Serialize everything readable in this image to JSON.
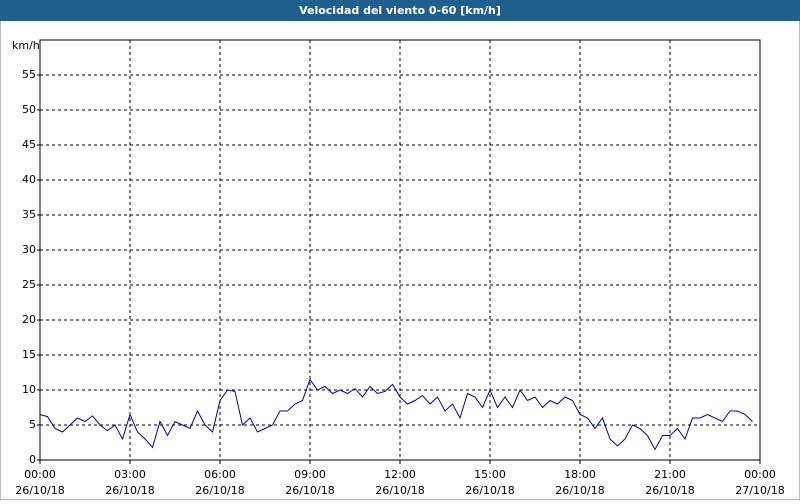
{
  "chart_data": {
    "type": "line",
    "title": "Velocidad del viento 0-60 [km/h]",
    "y_label": "km/h",
    "xlim": [
      0,
      24
    ],
    "xticks": [
      {
        "value": 0,
        "label": "00:00",
        "date": "26/10/18"
      },
      {
        "value": 3,
        "label": "03:00",
        "date": "26/10/18"
      },
      {
        "value": 6,
        "label": "06:00",
        "date": "26/10/18"
      },
      {
        "value": 9,
        "label": "09:00",
        "date": "26/10/18"
      },
      {
        "value": 12,
        "label": "12:00",
        "date": "26/10/18"
      },
      {
        "value": 15,
        "label": "15:00",
        "date": "26/10/18"
      },
      {
        "value": 18,
        "label": "18:00",
        "date": "26/10/18"
      },
      {
        "value": 21,
        "label": "21:00",
        "date": "26/10/18"
      },
      {
        "value": 24,
        "label": "00:00",
        "date": "27/10/18"
      }
    ],
    "ylim": [
      0,
      60
    ],
    "yticks": [
      0,
      5,
      10,
      15,
      20,
      25,
      30,
      35,
      40,
      45,
      50,
      55
    ],
    "grid": true,
    "x": [
      0,
      0.25,
      0.5,
      0.75,
      1,
      1.25,
      1.5,
      1.75,
      2,
      2.25,
      2.5,
      2.75,
      3,
      3.25,
      3.5,
      3.75,
      4,
      4.25,
      4.5,
      4.75,
      5,
      5.25,
      5.5,
      5.75,
      6,
      6.25,
      6.5,
      6.75,
      7,
      7.25,
      7.5,
      7.75,
      8,
      8.25,
      8.5,
      8.75,
      9,
      9.25,
      9.5,
      9.75,
      10,
      10.25,
      10.5,
      10.75,
      11,
      11.25,
      11.5,
      11.75,
      12,
      12.25,
      12.5,
      12.75,
      13,
      13.25,
      13.5,
      13.75,
      14,
      14.25,
      14.5,
      14.75,
      15,
      15.25,
      15.5,
      15.75,
      16,
      16.25,
      16.5,
      16.75,
      17,
      17.25,
      17.5,
      17.75,
      18,
      18.25,
      18.5,
      18.75,
      19,
      19.25,
      19.5,
      19.75,
      20,
      20.25,
      20.5,
      20.75,
      21,
      21.25,
      21.5,
      21.75,
      22,
      22.25,
      22.5,
      22.75,
      23,
      23.25,
      23.5,
      23.75
    ],
    "series": [
      {
        "color": "#0000b0",
        "values": [
          6.5,
          6.2,
          4.5,
          4.0,
          5.0,
          6.0,
          5.5,
          6.3,
          5.0,
          4.2,
          5.0,
          3.0,
          6.5,
          4.0,
          3.0,
          1.8,
          5.5,
          3.5,
          5.5,
          5.0,
          4.5,
          7.0,
          5.0,
          4.0,
          8.5,
          10.0,
          9.8,
          5.0,
          6.0,
          4.0,
          4.5,
          5.0,
          7.0,
          7.0,
          8.0,
          8.5,
          11.5,
          10.0,
          10.5,
          9.5,
          10.0,
          9.5,
          10.2,
          9.0,
          10.5,
          9.5,
          9.8,
          10.8,
          9.0,
          8.0,
          8.5,
          9.2,
          8.0,
          9.0,
          7.0,
          8.0,
          6.0,
          9.5,
          9.0,
          7.5,
          10.0,
          7.5,
          9.0,
          7.5,
          10.0,
          8.5,
          9.0,
          7.5,
          8.5,
          8.0,
          9.0,
          8.5,
          6.5,
          6.0,
          4.5,
          6.0,
          3.0,
          2.0,
          3.0,
          5.0,
          4.5,
          3.5,
          1.5,
          3.5,
          3.5,
          4.5,
          3.0,
          6.0,
          6.0,
          6.5,
          6.0,
          5.5,
          7.0,
          7.0,
          6.5,
          5.5
        ]
      }
    ]
  }
}
